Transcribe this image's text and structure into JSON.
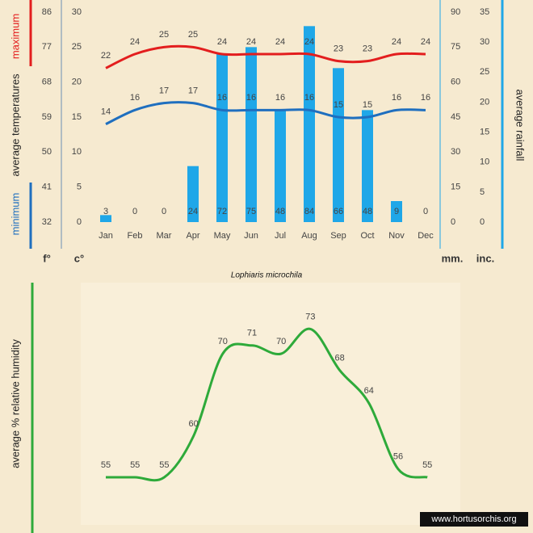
{
  "chart_data": [
    {
      "type": "combo",
      "title": "Lophiaris microchila",
      "categories": [
        "Jan",
        "Feb",
        "Mar",
        "Apr",
        "May",
        "Jun",
        "Jul",
        "Aug",
        "Sep",
        "Oct",
        "Nov",
        "Dec"
      ],
      "ylabel": "average temperatures",
      "y2label": "average rainfall",
      "yunit": "c°",
      "y2unit": "mm.",
      "ylim": [
        0,
        30
      ],
      "yticks": [
        0,
        5,
        10,
        15,
        20,
        25,
        30
      ],
      "y2lim": [
        0,
        90
      ],
      "y2ticks": [
        0,
        15,
        30,
        45,
        60,
        75,
        90
      ],
      "fahrenheit_axis": {
        "unit": "f°",
        "lim": [
          32,
          86
        ],
        "ticks": [
          32,
          41,
          50,
          59,
          68,
          77,
          86
        ]
      },
      "inch_axis": {
        "unit": "inc.",
        "lim": [
          0,
          35
        ],
        "ticks": [
          0,
          5,
          10,
          15,
          20,
          25,
          30,
          35
        ]
      },
      "series": [
        {
          "type": "bar",
          "axis": "y2",
          "color": "#1fa7e8",
          "values": [
            3,
            0,
            0,
            24,
            72,
            75,
            48,
            84,
            66,
            48,
            9,
            0
          ]
        },
        {
          "type": "line",
          "name": "maximum",
          "color": "#e31e1e",
          "values": [
            22,
            24,
            25,
            25,
            24,
            24,
            24,
            24,
            23,
            23,
            24,
            24
          ]
        },
        {
          "type": "line",
          "name": "minimum",
          "color": "#1f6fbf",
          "values": [
            14,
            16,
            17,
            17,
            16,
            16,
            16,
            16,
            15,
            15,
            16,
            16
          ]
        }
      ]
    },
    {
      "type": "line",
      "ylabel": "average % relative humidity",
      "color": "#2eaa3a",
      "values": [
        55,
        55,
        55,
        60,
        70,
        71,
        70,
        73,
        68,
        64,
        56,
        55
      ]
    }
  ],
  "watermark": "www.hortusorchis.org"
}
